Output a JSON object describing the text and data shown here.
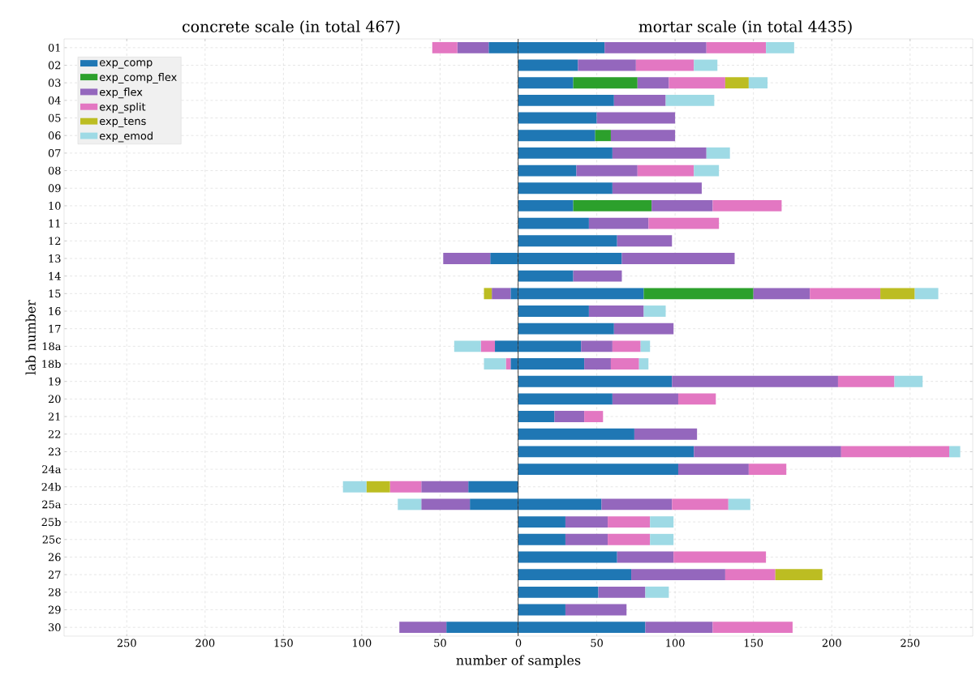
{
  "chart_data": [
    {
      "type": "bar",
      "orientation": "horizontal",
      "stacked": true,
      "title": "concrete scale (in total 467)",
      "xlabel": "number of samples",
      "ylabel": "lab number",
      "grid": true,
      "legend": "top left",
      "categories": [
        "01",
        "02",
        "03",
        "04",
        "05",
        "06",
        "07",
        "08",
        "09",
        "10",
        "11",
        "12",
        "13",
        "14",
        "15",
        "16",
        "17",
        "18a",
        "18b",
        "19",
        "20",
        "21",
        "22",
        "23",
        "24a",
        "24b",
        "25a",
        "25b",
        "25c",
        "26",
        "27",
        "28",
        "29",
        "30"
      ],
      "xlim": [
        290,
        0
      ],
      "xticks": [
        250,
        200,
        150,
        100,
        50
      ],
      "series": [
        {
          "name": "exp_comp",
          "color": "#1f77b4",
          "values": [
            19,
            null,
            null,
            null,
            null,
            null,
            null,
            null,
            null,
            null,
            null,
            null,
            18,
            null,
            5,
            null,
            null,
            15,
            5,
            null,
            null,
            null,
            null,
            null,
            null,
            32,
            31,
            null,
            null,
            null,
            null,
            null,
            null,
            46
          ]
        },
        {
          "name": "exp_comp_flex",
          "color": "#2ca02c",
          "values": [
            null,
            null,
            null,
            null,
            null,
            null,
            null,
            null,
            null,
            null,
            null,
            null,
            null,
            null,
            null,
            null,
            null,
            null,
            null,
            null,
            null,
            null,
            null,
            null,
            null,
            null,
            null,
            null,
            null,
            null,
            null,
            null,
            null,
            null
          ]
        },
        {
          "name": "exp_flex",
          "color": "#9467bd",
          "values": [
            20,
            null,
            null,
            null,
            null,
            null,
            null,
            null,
            null,
            null,
            null,
            null,
            30,
            null,
            12,
            null,
            null,
            null,
            null,
            null,
            null,
            null,
            null,
            null,
            null,
            30,
            31,
            null,
            null,
            null,
            null,
            null,
            null,
            30
          ]
        },
        {
          "name": "exp_split",
          "color": "#e377c2",
          "values": [
            16,
            null,
            null,
            null,
            null,
            null,
            null,
            null,
            null,
            null,
            null,
            null,
            null,
            null,
            null,
            null,
            null,
            9,
            3,
            null,
            null,
            null,
            null,
            null,
            null,
            20,
            null,
            null,
            null,
            null,
            null,
            null,
            null,
            null
          ]
        },
        {
          "name": "exp_tens",
          "color": "#bcbd22",
          "values": [
            null,
            null,
            null,
            null,
            null,
            null,
            null,
            null,
            null,
            null,
            null,
            null,
            null,
            null,
            5,
            null,
            null,
            null,
            null,
            null,
            null,
            null,
            null,
            null,
            null,
            15,
            null,
            null,
            null,
            null,
            null,
            null,
            null,
            null
          ]
        },
        {
          "name": "exp_emod",
          "color": "#9edae5",
          "values": [
            null,
            null,
            null,
            null,
            null,
            null,
            null,
            null,
            null,
            null,
            null,
            null,
            null,
            null,
            null,
            null,
            null,
            17,
            14,
            null,
            null,
            null,
            null,
            null,
            null,
            15,
            15,
            null,
            null,
            null,
            null,
            null,
            null,
            null
          ]
        }
      ]
    },
    {
      "type": "bar",
      "orientation": "horizontal",
      "stacked": true,
      "title": "mortar scale (in total 4435)",
      "grid": true,
      "tick_labels": "x",
      "categories": [
        null,
        null,
        null,
        null,
        null,
        null,
        null,
        null,
        null,
        null,
        null,
        null,
        null,
        null,
        null,
        null,
        null,
        null,
        null,
        null,
        null,
        null,
        null,
        null,
        null,
        null,
        null,
        null,
        null,
        null,
        null,
        null,
        null,
        null
      ],
      "xlim": [
        0,
        290
      ],
      "xticks": [
        0,
        50,
        100,
        150,
        200,
        250
      ],
      "series": [
        {
          "color": "#1f77b4",
          "values": [
            55,
            38,
            35,
            61,
            50,
            49,
            60,
            37,
            60,
            35,
            45,
            63,
            66,
            35,
            80,
            45,
            61,
            40,
            42,
            98,
            60,
            23,
            74,
            112,
            102,
            null,
            53,
            30,
            30,
            63,
            72,
            51,
            30,
            81
          ]
        },
        {
          "color": "#2ca02c",
          "values": [
            null,
            null,
            41,
            null,
            null,
            10,
            null,
            null,
            null,
            50,
            null,
            null,
            null,
            null,
            70,
            null,
            null,
            null,
            null,
            null,
            null,
            null,
            null,
            null,
            null,
            null,
            null,
            null,
            null,
            null,
            null,
            null,
            null,
            null
          ]
        },
        {
          "color": "#9467bd",
          "values": [
            65,
            37,
            20,
            33,
            50,
            41,
            60,
            39,
            57,
            39,
            38,
            35,
            72,
            31,
            36,
            35,
            38,
            20,
            17,
            106,
            42,
            19,
            40,
            94,
            45,
            null,
            45,
            27,
            27,
            36,
            60,
            30,
            39,
            43
          ]
        },
        {
          "color": "#e377c2",
          "values": [
            38,
            37,
            36,
            null,
            null,
            null,
            null,
            36,
            null,
            44,
            45,
            null,
            null,
            null,
            45,
            null,
            null,
            18,
            18,
            36,
            24,
            12,
            null,
            69,
            24,
            null,
            36,
            27,
            27,
            59,
            32,
            null,
            null,
            51
          ]
        },
        {
          "color": "#bcbd22",
          "values": [
            null,
            null,
            15,
            null,
            null,
            null,
            null,
            null,
            null,
            null,
            null,
            null,
            null,
            null,
            22,
            null,
            null,
            null,
            null,
            null,
            null,
            null,
            null,
            null,
            null,
            null,
            null,
            null,
            null,
            null,
            30,
            null,
            null,
            null
          ]
        },
        {
          "color": "#9edae5",
          "values": [
            18,
            15,
            12,
            31,
            null,
            null,
            15,
            16,
            null,
            null,
            null,
            null,
            null,
            null,
            15,
            14,
            null,
            6,
            6,
            18,
            null,
            null,
            null,
            7,
            null,
            null,
            14,
            15,
            15,
            null,
            null,
            15,
            null,
            null
          ]
        }
      ]
    }
  ]
}
